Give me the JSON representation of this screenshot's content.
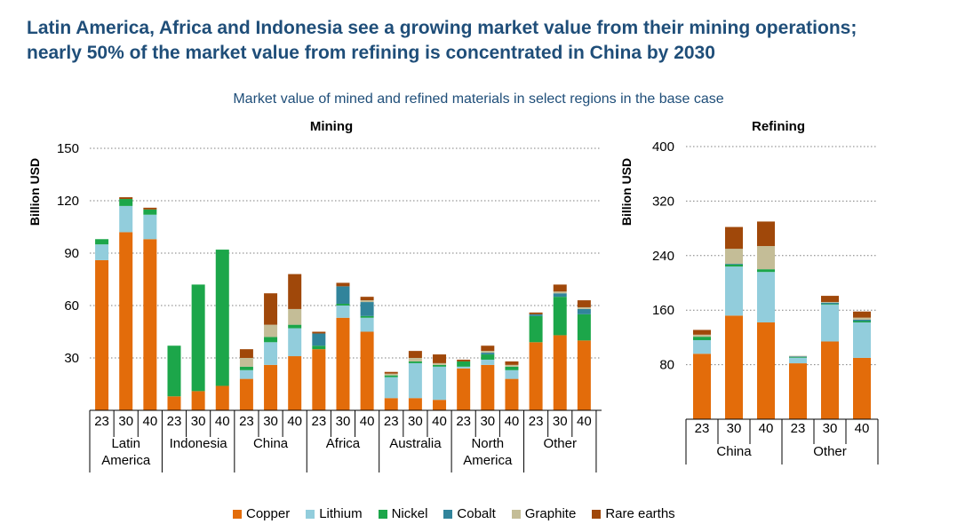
{
  "headline": {
    "line1": "Latin America, Africa and Indonesia see a growing market value from their mining operations;",
    "line2": "nearly 50% of the market value from refining is concentrated in China by 2030"
  },
  "subtitle": "Market value of mined and refined materials in select regions in the base case",
  "colors": {
    "Copper": "#e36c0a",
    "Lithium": "#92cddc",
    "Nickel": "#1ca64a",
    "Cobalt": "#31849b",
    "Graphite": "#c4bd97",
    "Rare earths": "#a0480a"
  },
  "legend": [
    "Copper",
    "Lithium",
    "Nickel",
    "Cobalt",
    "Graphite",
    "Rare earths"
  ],
  "chart_data": [
    {
      "type": "bar",
      "stacked": true,
      "title": "Mining",
      "ylabel": "Billion USD",
      "ylim": [
        0,
        150
      ],
      "yticks": [
        30,
        60,
        90,
        120,
        150
      ],
      "groups": [
        {
          "label": [
            "Latin",
            "America"
          ],
          "years": [
            "23",
            "30",
            "40"
          ]
        },
        {
          "label": [
            "Indonesia"
          ],
          "years": [
            "23",
            "30",
            "40"
          ]
        },
        {
          "label": [
            "China"
          ],
          "years": [
            "23",
            "30",
            "40"
          ]
        },
        {
          "label": [
            "Africa"
          ],
          "years": [
            "23",
            "30",
            "40"
          ]
        },
        {
          "label": [
            "Australia"
          ],
          "years": [
            "23",
            "30",
            "40"
          ]
        },
        {
          "label": [
            "North",
            "America"
          ],
          "years": [
            "23",
            "30",
            "40"
          ]
        },
        {
          "label": [
            "Other"
          ],
          "years": [
            "23",
            "30",
            "40"
          ]
        }
      ],
      "series": [
        {
          "name": "Copper",
          "values": [
            86,
            102,
            98,
            8,
            11,
            14,
            18,
            26,
            31,
            35,
            53,
            45,
            7,
            7,
            6,
            24,
            26,
            18,
            39,
            43,
            40
          ]
        },
        {
          "name": "Lithium",
          "values": [
            9,
            15,
            14,
            0,
            0,
            0,
            5,
            13,
            16,
            0,
            7,
            8,
            12,
            20,
            19,
            1,
            3,
            5,
            0,
            0,
            0
          ]
        },
        {
          "name": "Nickel",
          "values": [
            3,
            4,
            3,
            29,
            61,
            78,
            2,
            3,
            2,
            2,
            1,
            1,
            1,
            1,
            1,
            3,
            3,
            2,
            15,
            22,
            15
          ]
        },
        {
          "name": "Cobalt",
          "values": [
            0,
            0,
            0,
            0,
            0,
            0,
            0,
            0,
            0,
            7,
            10,
            8,
            0,
            0,
            0,
            0,
            1,
            0,
            1,
            2,
            3
          ]
        },
        {
          "name": "Graphite",
          "values": [
            0,
            0,
            0,
            0,
            0,
            0,
            5,
            7,
            9,
            0,
            0,
            1,
            1,
            2,
            1,
            0,
            1,
            1,
            0,
            1,
            1
          ]
        },
        {
          "name": "Rare earths",
          "values": [
            0,
            1,
            1,
            0,
            0,
            0,
            5,
            18,
            20,
            1,
            2,
            2,
            1,
            4,
            5,
            1,
            3,
            2,
            1,
            4,
            4
          ]
        }
      ]
    },
    {
      "type": "bar",
      "stacked": true,
      "title": "Refining",
      "ylabel": "Billion USD",
      "ylim": [
        0,
        400
      ],
      "yticks": [
        80,
        160,
        240,
        320,
        400
      ],
      "groups": [
        {
          "label": [
            "China"
          ],
          "years": [
            "23",
            "30",
            "40"
          ]
        },
        {
          "label": [
            "Other"
          ],
          "years": [
            "23",
            "30",
            "40"
          ]
        }
      ],
      "series": [
        {
          "name": "Copper",
          "values": [
            96,
            152,
            142,
            82,
            114,
            90
          ]
        },
        {
          "name": "Lithium",
          "values": [
            20,
            72,
            74,
            8,
            54,
            52
          ]
        },
        {
          "name": "Nickel",
          "values": [
            5,
            3,
            4,
            1,
            1,
            2
          ]
        },
        {
          "name": "Cobalt",
          "values": [
            0,
            1,
            0,
            1,
            2,
            2
          ]
        },
        {
          "name": "Graphite",
          "values": [
            3,
            22,
            34,
            1,
            1,
            3
          ]
        },
        {
          "name": "Rare earths",
          "values": [
            7,
            32,
            36,
            0,
            9,
            9
          ]
        }
      ]
    }
  ]
}
